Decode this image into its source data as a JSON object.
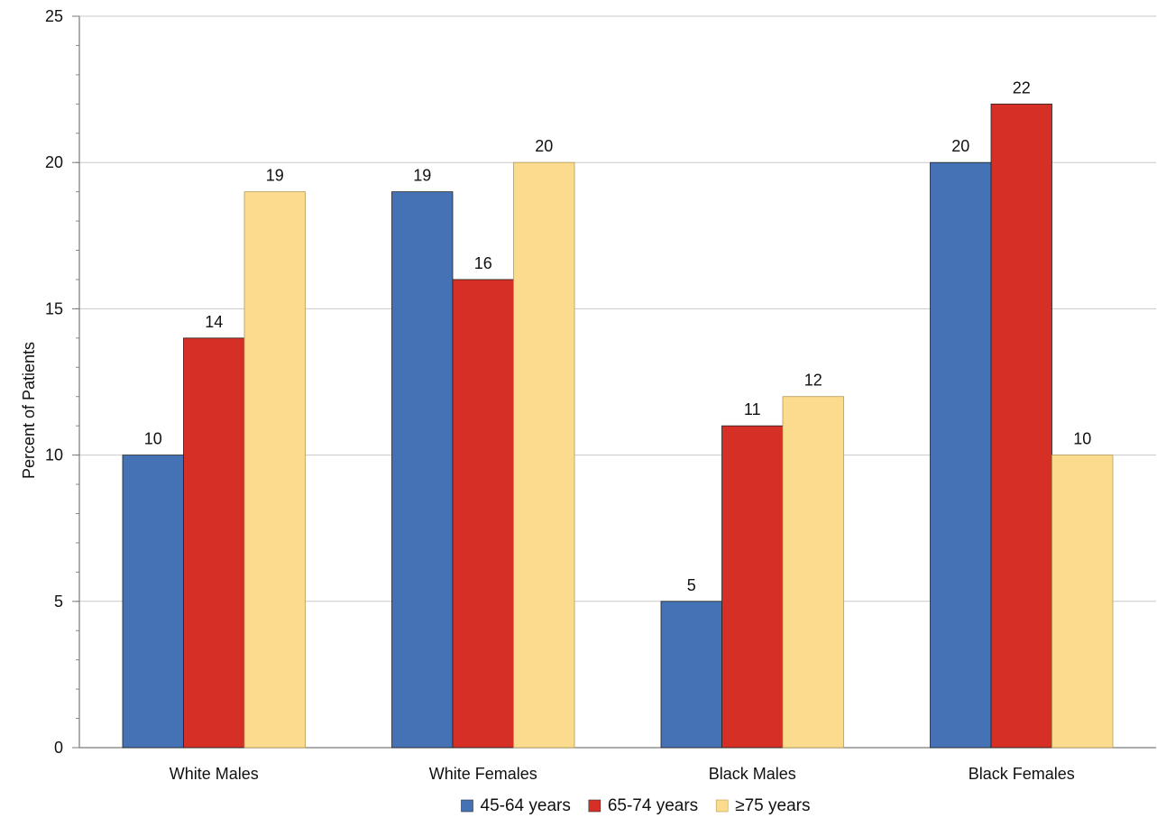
{
  "chart_data": {
    "type": "bar",
    "title": "",
    "xlabel": "",
    "ylabel": "Percent of Patients",
    "ylim": [
      0,
      25
    ],
    "y_ticks": [
      0,
      5,
      10,
      15,
      20,
      25
    ],
    "grid": "horizontal major gridlines on",
    "legend_position": "bottom",
    "categories": [
      "White Males",
      "White Females",
      "Black Males",
      "Black Females"
    ],
    "series": [
      {
        "name": "45-64 years",
        "color": "#4472b4",
        "values": [
          10,
          19,
          5,
          20
        ]
      },
      {
        "name": "65-74 years",
        "color": "#d62f26",
        "values": [
          14,
          16,
          11,
          22
        ]
      },
      {
        "name": "≥75 years",
        "color": "#fbdc8e",
        "values": [
          19,
          20,
          12,
          10
        ]
      }
    ]
  }
}
